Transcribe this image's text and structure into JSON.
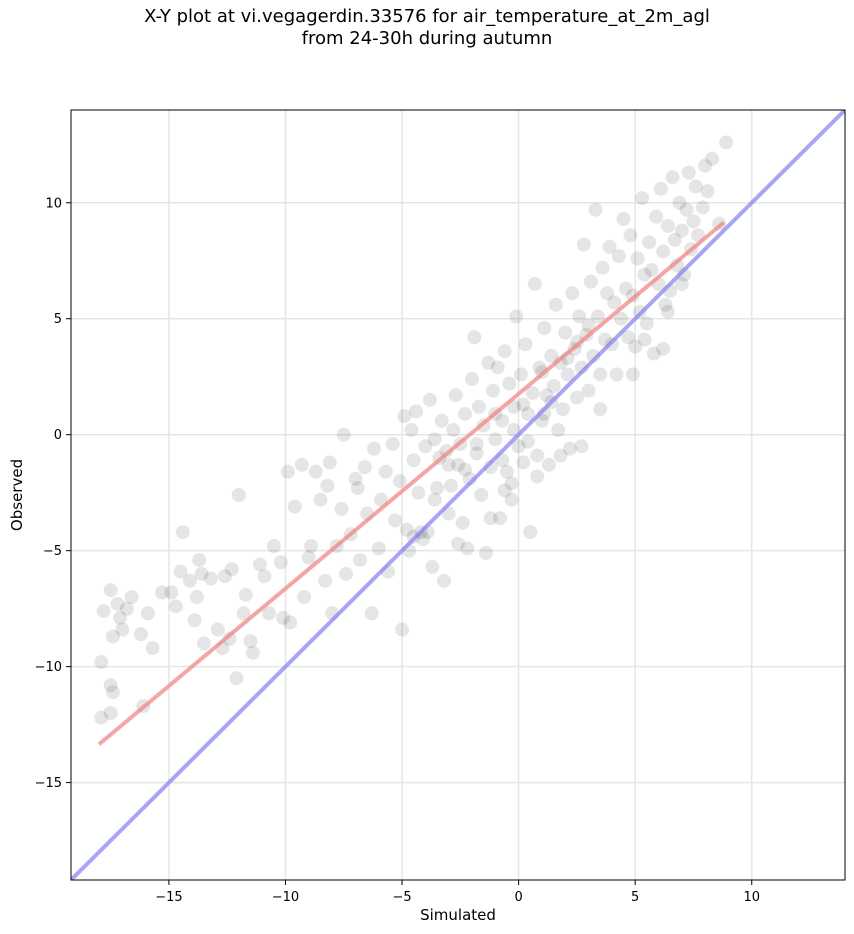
{
  "chart_data": {
    "type": "scatter",
    "title": [
      "X-Y plot at vi.vegagerdin.33576 for air_temperature_at_2m_agl",
      "from 24-30h during autumn"
    ],
    "xlabel": "Simulated",
    "ylabel": "Observed",
    "xlim": [
      -19.2,
      14
    ],
    "ylim": [
      -19.2,
      14
    ],
    "xticks": [
      -15,
      -10,
      -5,
      0,
      5,
      10
    ],
    "yticks": [
      -15,
      -10,
      -5,
      0,
      5,
      10
    ],
    "xtick_labels": [
      "−15",
      "−10",
      "−5",
      "0",
      "5",
      "10"
    ],
    "ytick_labels": [
      "−15",
      "−10",
      "−5",
      "0",
      "5",
      "10"
    ],
    "grid": true,
    "marker_color": "#000000",
    "marker_alpha": 0.1,
    "regression_line": {
      "color": "#f08080",
      "x": [
        -18,
        8.8
      ],
      "y": [
        -13.35,
        9.15
      ]
    },
    "identity_line": {
      "color": "#8080f0",
      "x": [
        -19.2,
        14
      ],
      "y": [
        -19.2,
        14
      ]
    },
    "points": [
      [
        -17.9,
        -9.8
      ],
      [
        -17.8,
        -7.6
      ],
      [
        -17.5,
        -6.7
      ],
      [
        -17.4,
        -8.7
      ],
      [
        -17.2,
        -7.3
      ],
      [
        -17.0,
        -8.4
      ],
      [
        -17.1,
        -7.9
      ],
      [
        -16.8,
        -7.5
      ],
      [
        -16.6,
        -7.0
      ],
      [
        -17.9,
        -12.2
      ],
      [
        -17.5,
        -12.0
      ],
      [
        -17.5,
        -10.8
      ],
      [
        -17.4,
        -11.1
      ],
      [
        -16.1,
        -11.7
      ],
      [
        -16.2,
        -8.6
      ],
      [
        -15.9,
        -7.7
      ],
      [
        -15.7,
        -9.2
      ],
      [
        -15.3,
        -6.8
      ],
      [
        -14.9,
        -6.8
      ],
      [
        -14.7,
        -7.4
      ],
      [
        -14.5,
        -5.9
      ],
      [
        -14.4,
        -4.2
      ],
      [
        -14.1,
        -6.3
      ],
      [
        -13.9,
        -8.0
      ],
      [
        -13.8,
        -7.0
      ],
      [
        -13.7,
        -5.4
      ],
      [
        -13.6,
        -6.0
      ],
      [
        -13.5,
        -9.0
      ],
      [
        -13.2,
        -6.2
      ],
      [
        -12.9,
        -8.4
      ],
      [
        -12.7,
        -9.2
      ],
      [
        -12.6,
        -6.1
      ],
      [
        -12.4,
        -8.8
      ],
      [
        -12.3,
        -5.8
      ],
      [
        -12.0,
        -2.6
      ],
      [
        -12.1,
        -10.5
      ],
      [
        -11.8,
        -7.7
      ],
      [
        -11.7,
        -6.9
      ],
      [
        -11.5,
        -8.9
      ],
      [
        -11.4,
        -9.4
      ],
      [
        -11.1,
        -5.6
      ],
      [
        -10.9,
        -6.1
      ],
      [
        -10.7,
        -7.7
      ],
      [
        -10.5,
        -4.8
      ],
      [
        -10.2,
        -5.5
      ],
      [
        -10.1,
        -7.9
      ],
      [
        -9.9,
        -1.6
      ],
      [
        -9.8,
        -8.1
      ],
      [
        -9.6,
        -3.1
      ],
      [
        -9.3,
        -1.3
      ],
      [
        -9.2,
        -7.0
      ],
      [
        -9.0,
        -5.3
      ],
      [
        -8.9,
        -4.8
      ],
      [
        -8.7,
        -1.6
      ],
      [
        -8.5,
        -2.8
      ],
      [
        -8.3,
        -6.3
      ],
      [
        -8.2,
        -2.2
      ],
      [
        -8.1,
        -1.2
      ],
      [
        -8.0,
        -7.7
      ],
      [
        -7.8,
        -4.8
      ],
      [
        -7.6,
        -3.2
      ],
      [
        -7.5,
        0.0
      ],
      [
        -7.4,
        -6.0
      ],
      [
        -7.2,
        -4.3
      ],
      [
        -7.0,
        -1.9
      ],
      [
        -6.9,
        -2.3
      ],
      [
        -6.8,
        -5.4
      ],
      [
        -6.6,
        -1.4
      ],
      [
        -6.5,
        -3.4
      ],
      [
        -6.3,
        -7.7
      ],
      [
        -6.2,
        -0.6
      ],
      [
        -6.0,
        -4.9
      ],
      [
        -5.9,
        -2.8
      ],
      [
        -5.7,
        -1.6
      ],
      [
        -5.6,
        -5.9
      ],
      [
        -5.4,
        -0.4
      ],
      [
        -5.3,
        -3.7
      ],
      [
        -5.1,
        -2.0
      ],
      [
        -5.0,
        -8.4
      ],
      [
        -4.9,
        0.8
      ],
      [
        -4.8,
        -4.1
      ],
      [
        -4.7,
        -5.0
      ],
      [
        -4.5,
        -1.1
      ],
      [
        -4.4,
        1.0
      ],
      [
        -4.3,
        -2.5
      ],
      [
        -4.2,
        -4.2
      ],
      [
        -4.1,
        -4.5
      ],
      [
        -3.9,
        -4.2
      ],
      [
        -3.8,
        1.5
      ],
      [
        -3.6,
        -0.2
      ],
      [
        -3.5,
        -2.3
      ],
      [
        -3.4,
        -1.0
      ],
      [
        -3.3,
        0.6
      ],
      [
        -3.2,
        -6.3
      ],
      [
        -3.1,
        -0.7
      ],
      [
        -3.0,
        -3.4
      ],
      [
        -2.9,
        -2.2
      ],
      [
        -2.8,
        0.2
      ],
      [
        -2.7,
        1.7
      ],
      [
        -2.6,
        -1.3
      ],
      [
        -2.5,
        -0.4
      ],
      [
        -2.4,
        -3.8
      ],
      [
        -2.3,
        0.9
      ],
      [
        -2.2,
        -4.9
      ],
      [
        -2.1,
        -1.9
      ],
      [
        -2.0,
        2.4
      ],
      [
        -1.9,
        4.2
      ],
      [
        -1.8,
        -0.8
      ],
      [
        -1.7,
        1.2
      ],
      [
        -1.6,
        -2.6
      ],
      [
        -1.5,
        0.4
      ],
      [
        -1.4,
        -5.1
      ],
      [
        -1.3,
        3.1
      ],
      [
        -1.2,
        -1.4
      ],
      [
        -1.1,
        1.9
      ],
      [
        -1.0,
        -0.2
      ],
      [
        -0.9,
        2.9
      ],
      [
        -0.8,
        -3.6
      ],
      [
        -0.7,
        0.6
      ],
      [
        -0.6,
        3.6
      ],
      [
        -0.5,
        -1.6
      ],
      [
        -0.4,
        2.2
      ],
      [
        -0.3,
        -2.1
      ],
      [
        -0.2,
        1.2
      ],
      [
        -0.1,
        5.1
      ],
      [
        0.0,
        -0.5
      ],
      [
        0.1,
        2.6
      ],
      [
        0.2,
        -1.2
      ],
      [
        0.3,
        3.9
      ],
      [
        0.4,
        0.9
      ],
      [
        0.5,
        -4.2
      ],
      [
        0.6,
        1.8
      ],
      [
        0.7,
        6.5
      ],
      [
        0.8,
        -0.9
      ],
      [
        0.9,
        2.9
      ],
      [
        1.0,
        0.6
      ],
      [
        1.1,
        4.6
      ],
      [
        1.2,
        1.7
      ],
      [
        1.3,
        -1.3
      ],
      [
        1.4,
        3.4
      ],
      [
        1.5,
        2.1
      ],
      [
        1.6,
        5.6
      ],
      [
        1.7,
        0.2
      ],
      [
        1.8,
        3.1
      ],
      [
        1.9,
        1.1
      ],
      [
        2.0,
        4.4
      ],
      [
        2.1,
        2.6
      ],
      [
        2.2,
        -0.6
      ],
      [
        2.3,
        6.1
      ],
      [
        2.4,
        3.7
      ],
      [
        2.5,
        1.6
      ],
      [
        2.6,
        5.1
      ],
      [
        2.7,
        2.9
      ],
      [
        2.8,
        8.2
      ],
      [
        2.9,
        4.3
      ],
      [
        3.0,
        1.9
      ],
      [
        3.1,
        6.6
      ],
      [
        3.2,
        3.4
      ],
      [
        3.3,
        9.7
      ],
      [
        3.4,
        5.1
      ],
      [
        3.5,
        2.6
      ],
      [
        3.6,
        7.2
      ],
      [
        3.7,
        4.1
      ],
      [
        3.8,
        6.1
      ],
      [
        3.9,
        8.1
      ],
      [
        4.0,
        3.9
      ],
      [
        4.1,
        5.7
      ],
      [
        4.2,
        2.6
      ],
      [
        4.3,
        7.7
      ],
      [
        4.4,
        5.0
      ],
      [
        4.5,
        9.3
      ],
      [
        4.6,
        6.3
      ],
      [
        4.7,
        4.2
      ],
      [
        4.8,
        8.6
      ],
      [
        4.9,
        6.0
      ],
      [
        5.0,
        3.8
      ],
      [
        5.1,
        7.6
      ],
      [
        5.2,
        5.3
      ],
      [
        5.3,
        10.2
      ],
      [
        5.4,
        6.9
      ],
      [
        5.5,
        4.8
      ],
      [
        5.6,
        8.3
      ],
      [
        5.7,
        7.1
      ],
      [
        5.8,
        3.5
      ],
      [
        5.9,
        9.4
      ],
      [
        6.0,
        6.5
      ],
      [
        6.1,
        10.6
      ],
      [
        6.2,
        7.9
      ],
      [
        6.3,
        5.6
      ],
      [
        6.4,
        9.0
      ],
      [
        6.5,
        6.2
      ],
      [
        6.6,
        11.1
      ],
      [
        6.7,
        8.4
      ],
      [
        6.8,
        7.3
      ],
      [
        6.9,
        10.0
      ],
      [
        7.0,
        8.8
      ],
      [
        7.1,
        6.9
      ],
      [
        7.2,
        9.7
      ],
      [
        7.3,
        11.3
      ],
      [
        7.4,
        8.0
      ],
      [
        7.5,
        9.2
      ],
      [
        7.6,
        10.7
      ],
      [
        7.7,
        8.6
      ],
      [
        7.9,
        9.8
      ],
      [
        8.0,
        11.6
      ],
      [
        8.1,
        10.5
      ],
      [
        8.3,
        11.9
      ],
      [
        8.6,
        9.1
      ],
      [
        8.9,
        12.6
      ],
      [
        6.2,
        3.7
      ],
      [
        5.4,
        4.1
      ],
      [
        6.4,
        5.3
      ],
      [
        7.0,
        6.5
      ],
      [
        4.9,
        2.6
      ],
      [
        3.5,
        1.1
      ],
      [
        2.7,
        -0.5
      ],
      [
        1.8,
        -0.9
      ],
      [
        0.8,
        -1.8
      ],
      [
        -0.3,
        -2.8
      ],
      [
        -1.2,
        -3.6
      ],
      [
        -0.6,
        -2.4
      ],
      [
        -2.6,
        -4.7
      ],
      [
        -3.7,
        -5.7
      ],
      [
        -4.5,
        -4.4
      ],
      [
        -0.7,
        -1.1
      ],
      [
        0.2,
        1.3
      ],
      [
        1.0,
        2.7
      ],
      [
        1.4,
        1.4
      ],
      [
        2.1,
        3.3
      ],
      [
        2.5,
        4.0
      ],
      [
        3.0,
        4.7
      ],
      [
        -0.2,
        0.2
      ],
      [
        0.4,
        -0.3
      ],
      [
        1.1,
        0.9
      ],
      [
        -1.0,
        0.9
      ],
      [
        -1.8,
        -0.4
      ],
      [
        -2.3,
        -1.5
      ],
      [
        -3.0,
        -1.3
      ],
      [
        -3.6,
        -2.8
      ],
      [
        -4.0,
        -0.5
      ],
      [
        -4.6,
        0.2
      ]
    ]
  }
}
